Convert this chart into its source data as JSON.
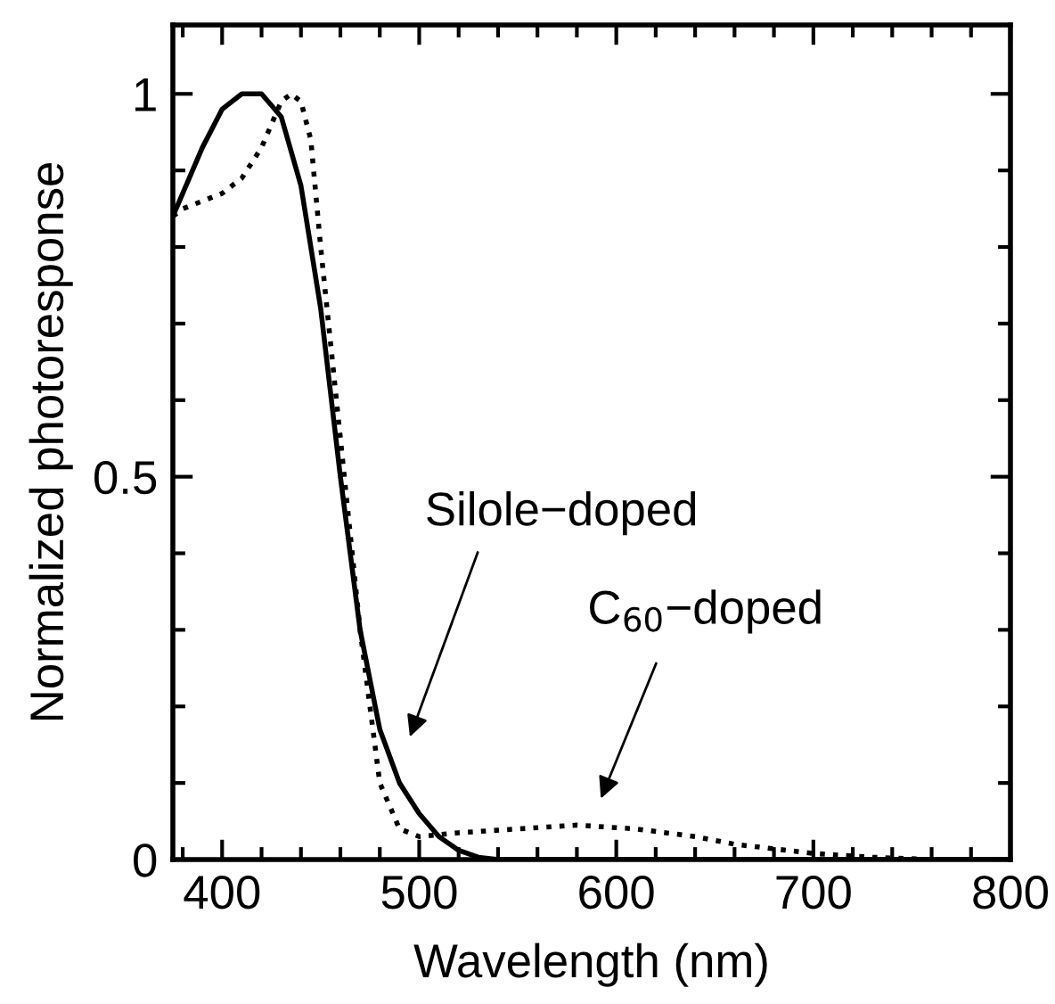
{
  "chart_data": {
    "type": "line",
    "xlabel": "Wavelength (nm)",
    "ylabel": "Normalized photoresponse",
    "xlim": [
      375,
      800
    ],
    "xticks": [
      400,
      500,
      600,
      700,
      800
    ],
    "ylim": [
      0,
      1.09
    ],
    "yticks": [
      0,
      0.5,
      1
    ],
    "grid": false,
    "legend": false,
    "marker": "none",
    "series": [
      {
        "color": "#000000",
        "line_style": "solid",
        "x": [
          375,
          380,
          390,
          400,
          410,
          420,
          430,
          440,
          450,
          460,
          470,
          480,
          490,
          500,
          510,
          520,
          530,
          540,
          800
        ],
        "values": [
          0.84,
          0.87,
          0.93,
          0.98,
          1.0,
          1.0,
          0.97,
          0.88,
          0.72,
          0.5,
          0.3,
          0.17,
          0.1,
          0.06,
          0.03,
          0.012,
          0.003,
          0,
          0
        ]
      },
      {
        "color": "#000000",
        "line_style": "dotted",
        "x": [
          375,
          380,
          390,
          400,
          410,
          420,
          430,
          435,
          440,
          445,
          450,
          460,
          470,
          480,
          490,
          500,
          520,
          550,
          580,
          610,
          640,
          660,
          700,
          730,
          760,
          800
        ],
        "values": [
          0.84,
          0.85,
          0.86,
          0.87,
          0.89,
          0.93,
          0.99,
          1.0,
          0.99,
          0.94,
          0.8,
          0.55,
          0.3,
          0.1,
          0.04,
          0.03,
          0.035,
          0.04,
          0.045,
          0.04,
          0.03,
          0.02,
          0.008,
          0.003,
          0,
          0
        ]
      }
    ],
    "annotations": [
      "Silole−doped",
      "C$_{60}$−doped"
    ]
  }
}
